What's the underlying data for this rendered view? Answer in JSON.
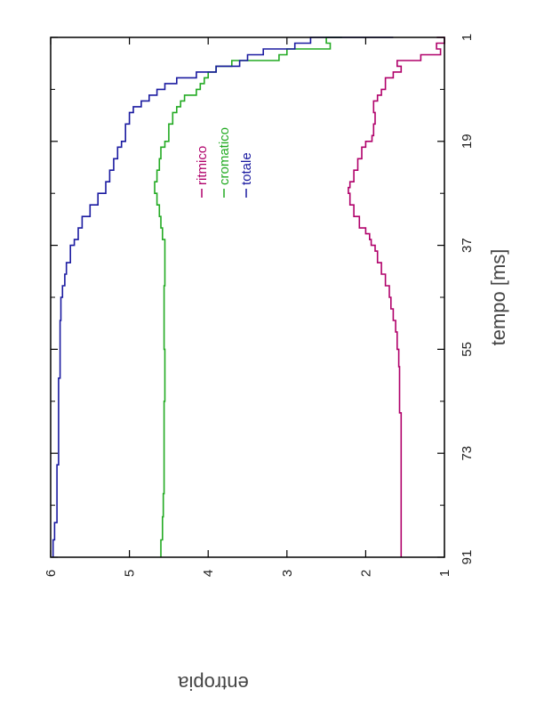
{
  "chart_data": {
    "type": "line",
    "orientation": "rotated-90-clockwise",
    "xlabel": "tempo [ms]",
    "ylabel": "entropia",
    "xlim": [
      1,
      91
    ],
    "ylim": [
      1,
      6
    ],
    "x_ticks": [
      1,
      19,
      37,
      55,
      73,
      91
    ],
    "y_ticks": [
      1,
      2,
      3,
      4,
      5,
      6
    ],
    "x_minor_ticks": [
      10,
      28,
      46,
      64,
      82
    ],
    "grid": false,
    "legend_position": "upper-middle",
    "series": [
      {
        "name": "ritmico",
        "color": "#b0006a",
        "points": [
          [
            1,
            1.1
          ],
          [
            2,
            1.0
          ],
          [
            3,
            1.1
          ],
          [
            4,
            1.05
          ],
          [
            5,
            1.3
          ],
          [
            6,
            1.6
          ],
          [
            7,
            1.55
          ],
          [
            8,
            1.65
          ],
          [
            9,
            1.75
          ],
          [
            10,
            1.75
          ],
          [
            11,
            1.8
          ],
          [
            12,
            1.85
          ],
          [
            14,
            1.9
          ],
          [
            16,
            1.88
          ],
          [
            18,
            1.9
          ],
          [
            19,
            1.92
          ],
          [
            20,
            2.0
          ],
          [
            22,
            2.05
          ],
          [
            24,
            2.1
          ],
          [
            26,
            2.15
          ],
          [
            27,
            2.2
          ],
          [
            28,
            2.22
          ],
          [
            30,
            2.2
          ],
          [
            32,
            2.15
          ],
          [
            34,
            2.08
          ],
          [
            35,
            2.0
          ],
          [
            36,
            1.95
          ],
          [
            37,
            1.93
          ],
          [
            38,
            1.88
          ],
          [
            40,
            1.85
          ],
          [
            42,
            1.8
          ],
          [
            44,
            1.75
          ],
          [
            46,
            1.7
          ],
          [
            48,
            1.68
          ],
          [
            50,
            1.65
          ],
          [
            52,
            1.62
          ],
          [
            55,
            1.6
          ],
          [
            58,
            1.58
          ],
          [
            62,
            1.57
          ],
          [
            66,
            1.57
          ],
          [
            70,
            1.55
          ],
          [
            74,
            1.55
          ],
          [
            78,
            1.55
          ],
          [
            82,
            1.55
          ],
          [
            86,
            1.55
          ],
          [
            91,
            1.55
          ]
        ]
      },
      {
        "name": "cromatico",
        "color": "#22aa22",
        "points": [
          [
            1,
            2.3
          ],
          [
            2,
            2.5
          ],
          [
            3,
            2.45
          ],
          [
            4,
            3.0
          ],
          [
            5,
            3.1
          ],
          [
            6,
            3.7
          ],
          [
            7,
            3.9
          ],
          [
            8,
            4.0
          ],
          [
            9,
            4.05
          ],
          [
            10,
            4.1
          ],
          [
            11,
            4.15
          ],
          [
            12,
            4.3
          ],
          [
            13,
            4.35
          ],
          [
            14,
            4.4
          ],
          [
            16,
            4.45
          ],
          [
            18,
            4.5
          ],
          [
            19,
            4.5
          ],
          [
            20,
            4.55
          ],
          [
            22,
            4.6
          ],
          [
            24,
            4.62
          ],
          [
            26,
            4.65
          ],
          [
            28,
            4.68
          ],
          [
            30,
            4.65
          ],
          [
            32,
            4.62
          ],
          [
            34,
            4.6
          ],
          [
            36,
            4.58
          ],
          [
            37,
            4.55
          ],
          [
            40,
            4.55
          ],
          [
            44,
            4.55
          ],
          [
            48,
            4.56
          ],
          [
            52,
            4.56
          ],
          [
            55,
            4.56
          ],
          [
            60,
            4.55
          ],
          [
            64,
            4.55
          ],
          [
            68,
            4.56
          ],
          [
            72,
            4.56
          ],
          [
            76,
            4.56
          ],
          [
            80,
            4.56
          ],
          [
            84,
            4.57
          ],
          [
            88,
            4.58
          ],
          [
            91,
            4.6
          ]
        ]
      },
      {
        "name": "totale",
        "color": "#1a1aa0",
        "points": [
          [
            1,
            1.65
          ],
          [
            2,
            2.7
          ],
          [
            3,
            2.9
          ],
          [
            4,
            3.3
          ],
          [
            5,
            3.5
          ],
          [
            6,
            3.6
          ],
          [
            7,
            3.9
          ],
          [
            8,
            4.15
          ],
          [
            9,
            4.4
          ],
          [
            10,
            4.55
          ],
          [
            11,
            4.65
          ],
          [
            12,
            4.75
          ],
          [
            13,
            4.85
          ],
          [
            14,
            4.95
          ],
          [
            16,
            5.0
          ],
          [
            18,
            5.05
          ],
          [
            19,
            5.05
          ],
          [
            20,
            5.1
          ],
          [
            22,
            5.15
          ],
          [
            24,
            5.2
          ],
          [
            26,
            5.25
          ],
          [
            28,
            5.3
          ],
          [
            30,
            5.4
          ],
          [
            32,
            5.5
          ],
          [
            34,
            5.6
          ],
          [
            36,
            5.65
          ],
          [
            37,
            5.7
          ],
          [
            40,
            5.75
          ],
          [
            42,
            5.8
          ],
          [
            44,
            5.82
          ],
          [
            46,
            5.85
          ],
          [
            50,
            5.87
          ],
          [
            55,
            5.88
          ],
          [
            60,
            5.88
          ],
          [
            65,
            5.9
          ],
          [
            70,
            5.9
          ],
          [
            75,
            5.9
          ],
          [
            80,
            5.92
          ],
          [
            85,
            5.92
          ],
          [
            88,
            5.95
          ],
          [
            91,
            5.97
          ]
        ]
      }
    ]
  }
}
